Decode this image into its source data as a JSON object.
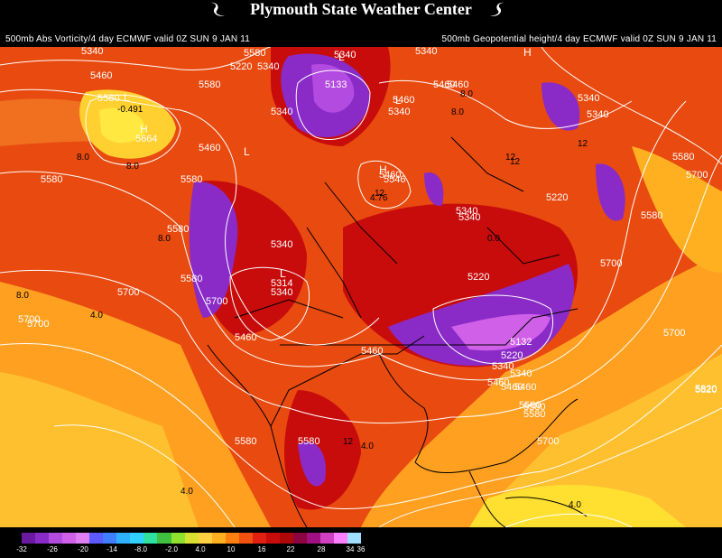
{
  "title": "Plymouth State Weather Center",
  "left_subtitle": "500mb Abs Vorticity/4 day ECMWF valid 0Z SUN 9 JAN 11",
  "right_subtitle": "500mb Geopotential height/4 day ECMWF valid 0Z SUN 9 JAN 11",
  "logo_icon": "snowflake-swirl-icon",
  "colors": {
    "background": "#000000",
    "contour": "#ffffff",
    "map_lines": "#000000"
  },
  "legend": {
    "colors": [
      "#6a1aa0",
      "#8a2bc8",
      "#b44be0",
      "#d060e8",
      "#e080f0",
      "#5a5aff",
      "#3f7fff",
      "#2fb0ff",
      "#30d0ff",
      "#30e0a0",
      "#40c040",
      "#90e030",
      "#d8e030",
      "#ffd040",
      "#ffb020",
      "#ff8010",
      "#f05010",
      "#e02010",
      "#c80c0c",
      "#ae0808",
      "#8c0440",
      "#a01080",
      "#d040c0",
      "#ff80ff",
      "#9fdfff"
    ],
    "labels": [
      "-32",
      "-26",
      "-20",
      "-14",
      "-8.0",
      "-2.0",
      "4.0",
      "10",
      "16",
      "22",
      "28",
      "34",
      "36"
    ]
  },
  "contour_labels": [
    "5340",
    "5460",
    "5580",
    "5220",
    "5340",
    "5340",
    "5460",
    "5340",
    "5580",
    "5700",
    "5580",
    "5580",
    "5700",
    "5460",
    "5340",
    "5580",
    "5700",
    "5340",
    "5460",
    "5340",
    "5700",
    "5580",
    "5460",
    "5340",
    "5460",
    "5580",
    "5700",
    "5820",
    "5460",
    "5340",
    "5580",
    "5220",
    "5340",
    "5460",
    "5580",
    "5580",
    "5700",
    "5700",
    "5580",
    "5820",
    "5580",
    "5460",
    "5460",
    "5340",
    "5314",
    "5664",
    "5133",
    "5546",
    "5132",
    "5220",
    "5340",
    "5460",
    "5580",
    "5580",
    "5700",
    "5340",
    "5220",
    "5340"
  ],
  "value_labels": [
    "-0.491",
    "8.0",
    "8.0",
    "8.0",
    "4.0",
    "4.0",
    "4.0",
    "4.0",
    "12",
    "12",
    "8.0",
    "4.76",
    "8.0",
    "12",
    "8.0",
    "12",
    "12",
    "0.0"
  ],
  "pressure_markers": [
    "H",
    "L",
    "L",
    "H",
    "L",
    "L",
    "H",
    "L"
  ]
}
